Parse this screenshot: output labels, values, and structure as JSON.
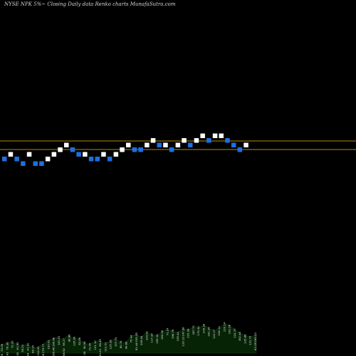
{
  "chart_data": {
    "type": "renko",
    "title": "NYSE NPK 5%~  Closing Daily data  Renko  charts MunafaSutra.com",
    "brick_direction": [
      "down",
      "up",
      "down",
      "down",
      "up",
      "down",
      "down",
      "up",
      "up",
      "up",
      "up",
      "down",
      "down",
      "up",
      "down",
      "down",
      "up",
      "down",
      "up",
      "up",
      "up",
      "down",
      "down",
      "up",
      "up",
      "down",
      "up",
      "down",
      "up",
      "up",
      "down",
      "up",
      "up",
      "down",
      "up",
      "up",
      "down",
      "down",
      "down",
      "up"
    ],
    "brick_level": [
      4,
      5,
      4,
      3,
      5,
      3,
      3,
      4,
      5,
      6,
      7,
      6,
      5,
      5,
      4,
      4,
      5,
      4,
      5,
      6,
      7,
      6,
      6,
      7,
      8,
      7,
      7,
      6,
      7,
      8,
      7,
      8,
      9,
      8,
      9,
      9,
      8,
      7,
      6,
      7
    ],
    "horizontal_lines": [
      "support",
      "resistance"
    ],
    "volume_labels": [
      [
        "53.09",
        "91.39"
      ],
      [
        "79.39",
        "61.63"
      ],
      [
        "72.30"
      ],
      [
        "61.95",
        "38.50"
      ],
      [
        "39.23"
      ],
      [
        "41.92",
        "28.44"
      ],
      [
        "64.15"
      ],
      [
        "104.91",
        "58.60"
      ],
      [
        "179.77",
        "79.58"
      ],
      [
        "100.01"
      ],
      [
        "190.46",
        "165.46"
      ],
      [
        "161.51"
      ],
      [
        "99.27",
        "68.92"
      ],
      [
        "96.86"
      ],
      [
        "135.99"
      ],
      [
        "62.56"
      ],
      [
        "90.08",
        "50.38"
      ],
      [
        "72.45"
      ],
      [
        "101.10"
      ],
      [
        "98.45",
        "90.23"
      ],
      [
        "112.01"
      ],
      [
        "125.38"
      ],
      [
        "157.73"
      ],
      [
        "80.74"
      ],
      [
        "94.66"
      ],
      [
        "75.44"
      ],
      [
        "155.35",
        "81.46"
      ],
      [
        "209.64"
      ],
      [
        "124.91"
      ],
      [
        "117.34"
      ],
      [
        "195.18"
      ],
      [
        "180.06"
      ],
      [
        "71.37"
      ],
      [
        "196.78"
      ],
      [
        "135.44"
      ],
      [
        "147.36",
        "129.13"
      ],
      [
        "215.38"
      ],
      [
        "187.71"
      ],
      [
        "175.34"
      ],
      [
        "209.39"
      ],
      [
        "161.28"
      ],
      [
        "120.27"
      ],
      [
        "156.14"
      ],
      [
        "220.14"
      ],
      [
        "191.08"
      ],
      [
        "124.70"
      ],
      [
        "162.46"
      ],
      [
        "135.88"
      ],
      [
        "131.73"
      ],
      [
        "185.23",
        "62.28"
      ]
    ],
    "volume_values": [
      0.2,
      0.24,
      0.28,
      0.24,
      0.18,
      0.22,
      0.16,
      0.14,
      0.2,
      0.3,
      0.36,
      0.4,
      0.34,
      0.44,
      0.38,
      0.36,
      0.26,
      0.22,
      0.28,
      0.32,
      0.24,
      0.3,
      0.36,
      0.28,
      0.26,
      0.42,
      0.48,
      0.4,
      0.52,
      0.46,
      0.44,
      0.54,
      0.6,
      0.56,
      0.5,
      0.62,
      0.58,
      0.66,
      0.64,
      0.7,
      0.62,
      0.56,
      0.64,
      0.74,
      0.68,
      0.58,
      0.5,
      0.44,
      0.4,
      0.48
    ]
  }
}
